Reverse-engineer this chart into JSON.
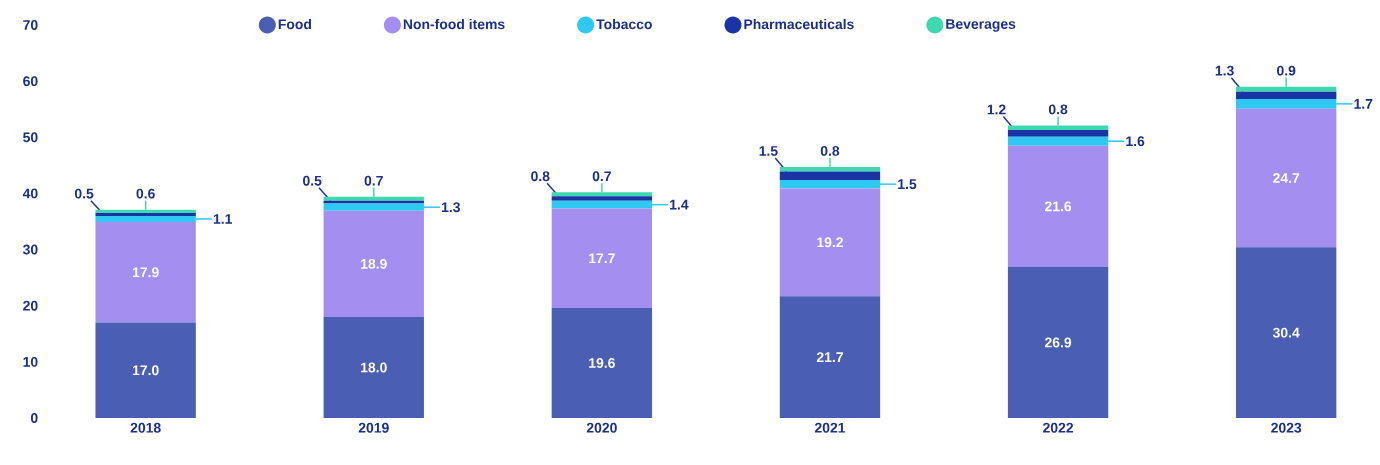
{
  "chart_data": {
    "type": "bar",
    "stacked": true,
    "categories": [
      "2018",
      "2019",
      "2020",
      "2021",
      "2022",
      "2023"
    ],
    "series": [
      {
        "name": "Food",
        "color": "#4a5fb4",
        "values": [
          17.0,
          18.0,
          19.6,
          21.7,
          26.9,
          30.4
        ],
        "value_labels": [
          "17.0",
          "18.0",
          "19.6",
          "21.7",
          "26.9",
          "30.4"
        ]
      },
      {
        "name": "Non-food items",
        "color": "#a48ef0",
        "values": [
          17.9,
          18.9,
          17.7,
          19.2,
          21.6,
          24.7
        ],
        "value_labels": [
          "17.9",
          "18.9",
          "17.7",
          "19.2",
          "21.6",
          "24.7"
        ]
      },
      {
        "name": "Tobacco",
        "color": "#2ec8f2",
        "values": [
          1.1,
          1.3,
          1.4,
          1.5,
          1.6,
          1.7
        ],
        "value_labels": [
          "1.1",
          "1.3",
          "1.4",
          "1.5",
          "1.6",
          "1.7"
        ]
      },
      {
        "name": "Pharmaceuticals",
        "color": "#1a34a6",
        "values": [
          0.5,
          0.5,
          0.8,
          1.5,
          1.2,
          1.3
        ],
        "value_labels": [
          "0.5",
          "0.5",
          "0.8",
          "1.5",
          "1.2",
          "1.3"
        ]
      },
      {
        "name": "Beverages",
        "color": "#3fd9b0",
        "values": [
          0.6,
          0.7,
          0.7,
          0.8,
          0.8,
          0.9
        ],
        "value_labels": [
          "0.6",
          "0.7",
          "0.7",
          "0.8",
          "0.8",
          "0.9"
        ]
      }
    ],
    "ylim": [
      0,
      70
    ],
    "yticks": [
      0,
      10,
      20,
      30,
      40,
      50,
      60,
      70
    ],
    "grid": false,
    "legend": "top"
  }
}
